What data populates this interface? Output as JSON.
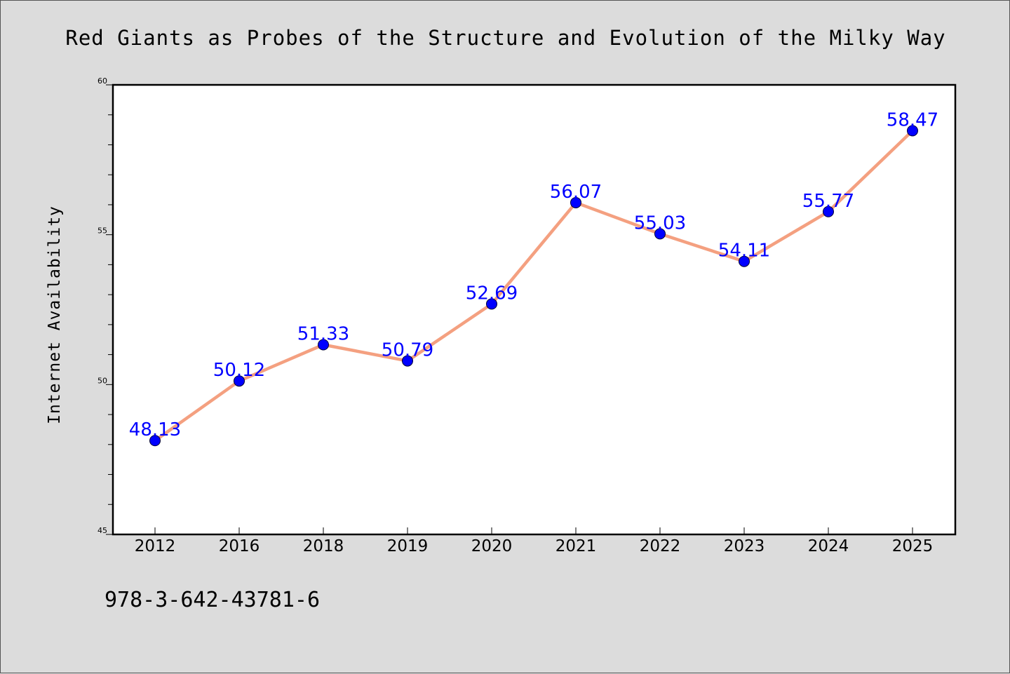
{
  "chart_data": {
    "type": "line",
    "title": "Red Giants as Probes of the Structure and Evolution of the Milky Way",
    "xlabel": "",
    "ylabel": "Internet Availability",
    "categories": [
      "2012",
      "2016",
      "2018",
      "2019",
      "2020",
      "2021",
      "2022",
      "2023",
      "2024",
      "2025"
    ],
    "series": [
      {
        "values": [
          48.13,
          50.12,
          51.33,
          50.79,
          52.69,
          56.07,
          55.03,
          54.11,
          55.77,
          58.47
        ],
        "labels": [
          "48.13",
          "50.12",
          "51.33",
          "50.79",
          "52.69",
          "56.07",
          "55.03",
          "54.11",
          "55.77",
          "58.47"
        ]
      }
    ],
    "ylim": [
      45,
      60
    ],
    "yticks": [
      "45",
      "50",
      "55",
      "60"
    ],
    "grid": false,
    "line_color": "#f4a080",
    "marker_color": "#0000ff",
    "label_color": "#0000ff"
  },
  "footnote": "978-3-642-43781-6"
}
